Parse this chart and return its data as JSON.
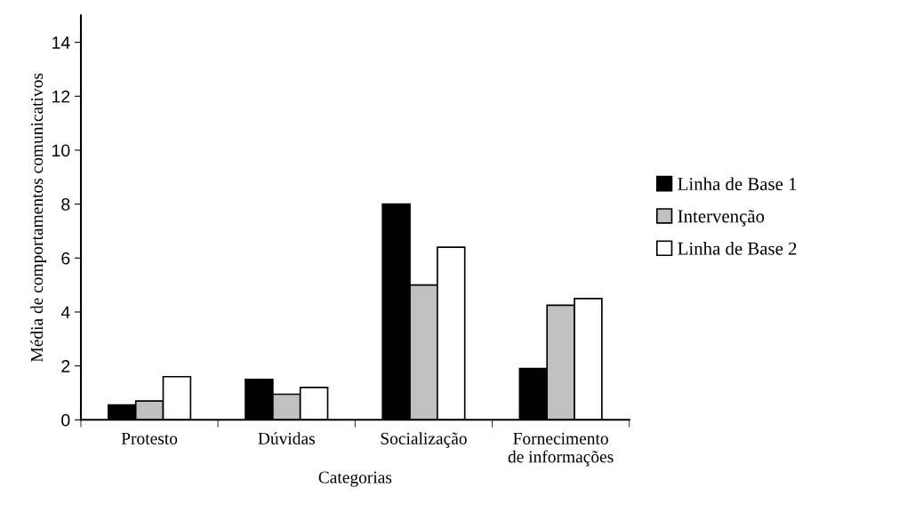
{
  "chart_data": {
    "type": "bar",
    "xlabel": "Categorias",
    "ylabel": "Média de comportamentos comunicativos",
    "categories": [
      "Protesto",
      "Dúvidas",
      "Socialização",
      "Fornecimento\nde informações"
    ],
    "series": [
      {
        "name": "Linha de Base 1",
        "color": "#000000",
        "values": [
          0.55,
          1.5,
          8.0,
          1.9
        ]
      },
      {
        "name": "Intervenção",
        "color": "#c0c0c0",
        "values": [
          0.7,
          0.95,
          5.0,
          4.25
        ]
      },
      {
        "name": "Linha de Base 2",
        "color": "#ffffff",
        "values": [
          1.6,
          1.2,
          6.4,
          4.5
        ]
      }
    ],
    "ylim": [
      0,
      15
    ],
    "yticks": [
      0,
      2,
      4,
      6,
      8,
      10,
      12,
      14
    ],
    "grid": false,
    "legend": "right"
  }
}
